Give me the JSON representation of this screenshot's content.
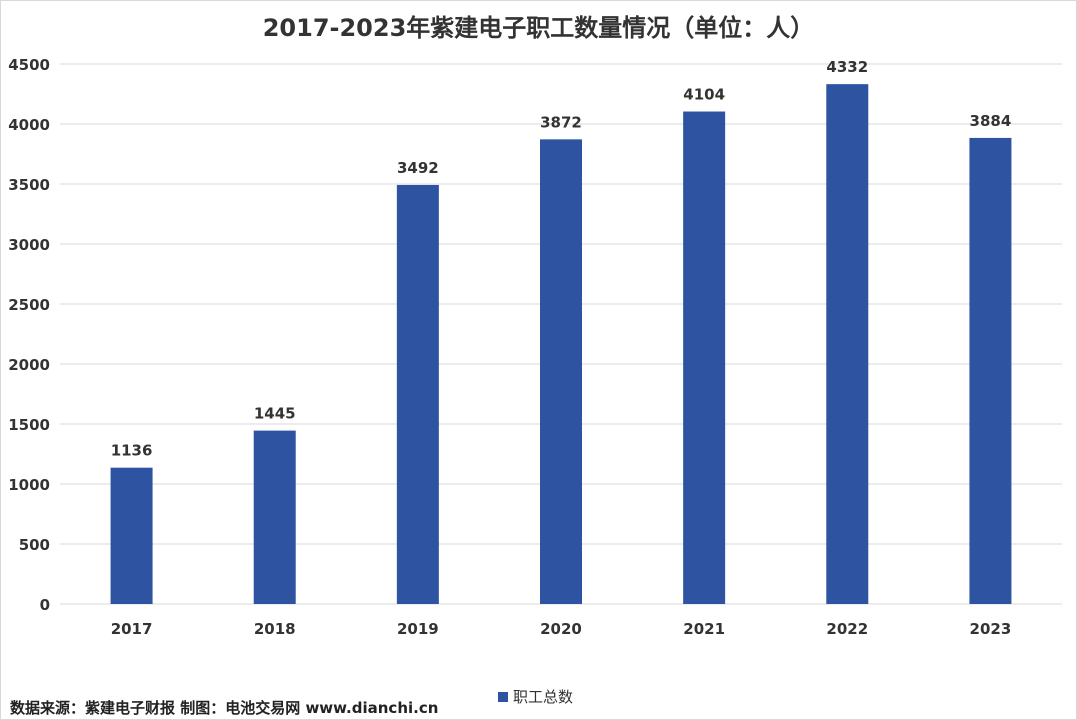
{
  "colors": {
    "bar": "#2E53A1",
    "grid": "#d9d9d9",
    "text": "#333333"
  },
  "footer": {
    "source": "数据来源：紫建电子财报  制图：电池交易网 www.dianchi.cn"
  },
  "chart_data": {
    "type": "bar",
    "title": "2017-2023年紫建电子职工数量情况（单位：人）",
    "xlabel": "",
    "ylabel": "",
    "categories": [
      "2017",
      "2018",
      "2019",
      "2020",
      "2021",
      "2022",
      "2023"
    ],
    "series": [
      {
        "name": "职工总数",
        "values": [
          1136,
          1445,
          3492,
          3872,
          4104,
          4332,
          3884
        ]
      }
    ],
    "ylim": [
      0,
      4500
    ],
    "yticks": [
      0,
      500,
      1000,
      1500,
      2000,
      2500,
      3000,
      3500,
      4000,
      4500
    ],
    "grid": true,
    "data_labels": true,
    "legend": "bottom"
  }
}
